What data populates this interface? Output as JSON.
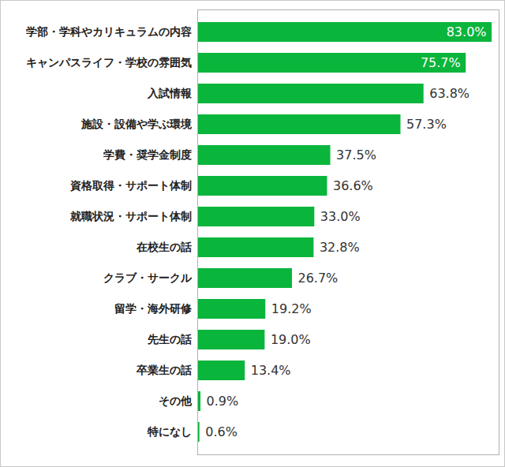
{
  "chart_data": {
    "type": "bar",
    "orientation": "horizontal",
    "categories": [
      "学部・学科やカリキュラムの内容",
      "キャンパスライフ・学校の雰囲気",
      "入試情報",
      "施設・設備や学ぶ環境",
      "学費・奨学金制度",
      "資格取得・サポート体制",
      "就職状況・サポート体制",
      "在校生の話",
      "クラブ・サークル",
      "留学・海外研修",
      "先生の話",
      "卒業生の話",
      "その他",
      "特になし"
    ],
    "values": [
      83.0,
      75.7,
      63.8,
      57.3,
      37.5,
      36.6,
      33.0,
      32.8,
      26.7,
      19.2,
      19.0,
      13.4,
      0.9,
      0.6
    ],
    "value_labels": [
      "83.0%",
      "75.7%",
      "63.8%",
      "57.3%",
      "37.5%",
      "36.6%",
      "33.0%",
      "32.8%",
      "26.7%",
      "19.2%",
      "19.0%",
      "13.4%",
      "0.9%",
      "0.6%"
    ],
    "color": "#0ab53c",
    "xlim": [
      0,
      85
    ],
    "xticks": [],
    "tick_labels": "y",
    "data_labels": true,
    "grid": false
  }
}
